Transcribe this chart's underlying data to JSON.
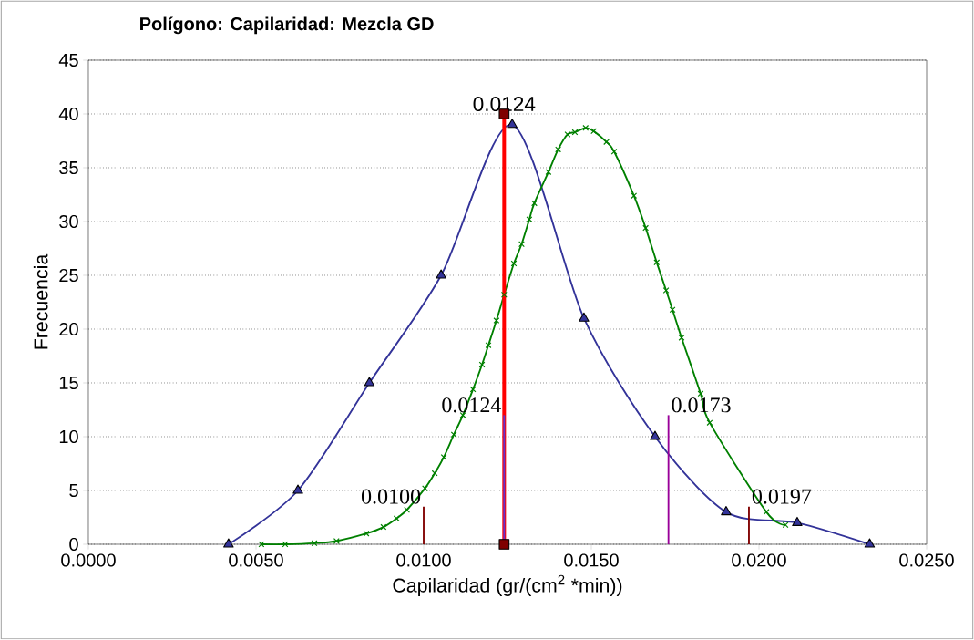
{
  "chart_data": {
    "type": "line",
    "title": "Polígono: Capilaridad: Mezcla GD",
    "xlabel": "Capilaridad (gr/(cm$^{2}$ *min))",
    "ylabel": "Frecuencia",
    "xlim": [
      0,
      0.025
    ],
    "ylim": [
      0,
      45
    ],
    "xticks": [
      {
        "value": 0,
        "label": "0.0000"
      },
      {
        "value": 0.005,
        "label": "0.0050"
      },
      {
        "value": 0.01,
        "label": "0.0100"
      },
      {
        "value": 0.015,
        "label": "0.0150"
      },
      {
        "value": 0.02,
        "label": "0.0200"
      },
      {
        "value": 0.025,
        "label": "0.0250"
      }
    ],
    "yticks": [
      0,
      5,
      10,
      15,
      20,
      25,
      30,
      35,
      40,
      45
    ],
    "grid": "y",
    "series": [
      {
        "color": "#333399",
        "marker": "triangle",
        "x": [
          0.00418,
          0.00625,
          0.00838,
          0.01052,
          0.01264,
          0.01478,
          0.0169,
          0.01902,
          0.02114,
          0.0233
        ],
        "values": [
          0,
          5,
          15,
          25,
          39,
          21,
          10,
          3,
          2,
          0
        ]
      },
      {
        "color": "#008000",
        "marker": "cross",
        "x": [
          0.00516,
          0.00587,
          0.00674,
          0.0074,
          0.00829,
          0.0088,
          0.00919,
          0.0095,
          0.01004,
          0.01033,
          0.0106,
          0.0109,
          0.01117,
          0.01147,
          0.01174,
          0.01193,
          0.01217,
          0.0124,
          0.01269,
          0.01292,
          0.01315,
          0.0133,
          0.01372,
          0.01401,
          0.01429,
          0.01451,
          0.01483,
          0.01507,
          0.01545,
          0.01568,
          0.01627,
          0.01662,
          0.01695,
          0.01723,
          0.01742,
          0.01769,
          0.01826,
          0.01853,
          0.02022,
          0.02079
        ],
        "values": [
          0,
          0,
          0.1,
          0.3,
          1,
          1.6,
          2.4,
          3.2,
          5.2,
          6.6,
          8.1,
          10.2,
          12,
          14.4,
          16.7,
          18.5,
          20.8,
          23.2,
          26.1,
          27.9,
          30.2,
          31.7,
          34.6,
          36.7,
          38.1,
          38.3,
          38.7,
          38.4,
          37.4,
          36.5,
          32.4,
          29.4,
          26.2,
          23.6,
          21.8,
          19.2,
          14,
          11.3,
          3,
          1.8
        ]
      },
      {
        "color": "#ff0000",
        "marker": "square",
        "x": [
          0.0124,
          0.0124
        ],
        "values": [
          0,
          40
        ]
      },
      {
        "color": "#800000",
        "marker": "none",
        "x": [
          0.01,
          0.01
        ],
        "values": [
          0,
          3.5
        ]
      },
      {
        "color": "#6633cc",
        "marker": "none",
        "x": [
          0.0124,
          0.0124
        ],
        "values": [
          0,
          12
        ]
      },
      {
        "color": "#990099",
        "marker": "none",
        "x": [
          0.0173,
          0.0173
        ],
        "values": [
          0,
          12
        ]
      },
      {
        "color": "#800000",
        "marker": "none",
        "x": [
          0.0197,
          0.0197
        ],
        "values": [
          0,
          3.5
        ]
      }
    ],
    "annotations": [
      {
        "text": "0.0124",
        "x": 0.0124,
        "y": 40
      },
      {
        "text": "0.0100",
        "x": 0.01,
        "y": 3.5
      },
      {
        "text": "0.0124",
        "x": 0.0124,
        "y": 12
      },
      {
        "text": "0.0173",
        "x": 0.0173,
        "y": 12
      },
      {
        "text": "0.0197",
        "x": 0.0197,
        "y": 3.5
      }
    ]
  }
}
